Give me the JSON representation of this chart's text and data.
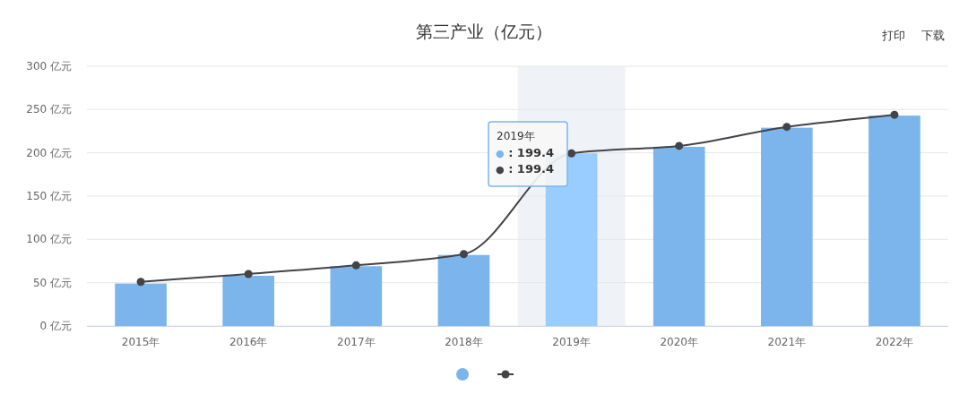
{
  "chart_data": {
    "type": "bar",
    "title": "第三产业（亿元）",
    "categories": [
      "2015年",
      "2016年",
      "2017年",
      "2018年",
      "2019年",
      "2020年",
      "2021年",
      "2022年"
    ],
    "series": [
      {
        "colors": [
          "#7cb5ec",
          "#7cb5ec",
          "#7cb5ec",
          "#7cb5ec",
          "#99ccff",
          "#7cb5ec",
          "#7cb5ec",
          "#7cb5ec"
        ],
        "color": "#7cb5ec",
        "values": [
          49,
          58,
          69,
          82,
          199.4,
          207,
          229,
          243
        ]
      },
      {
        "type": "line",
        "color": "#434348",
        "marker": "circle",
        "values": [
          51,
          60,
          70,
          83,
          199.4,
          208,
          230,
          244
        ]
      }
    ],
    "ylim": [
      0,
      300
    ],
    "yticks": [
      {
        "value": 0,
        "label": "0 亿元"
      },
      {
        "value": 50,
        "label": "50 亿元"
      },
      {
        "value": 100,
        "label": "100 亿元"
      },
      {
        "value": 150,
        "label": "150 亿元"
      },
      {
        "value": 200,
        "label": "200 亿元"
      },
      {
        "value": 250,
        "label": "250 亿元"
      },
      {
        "value": 300,
        "label": "300 亿元"
      }
    ],
    "grid": "y",
    "bands": [
      {
        "axis": "x",
        "from": "2019年",
        "to": "2019年",
        "color": "#eff3f8"
      }
    ],
    "annotations": [
      "2019年",
      "● : 199.4",
      "● : 199.4",
      "打印",
      "下载"
    ]
  }
}
